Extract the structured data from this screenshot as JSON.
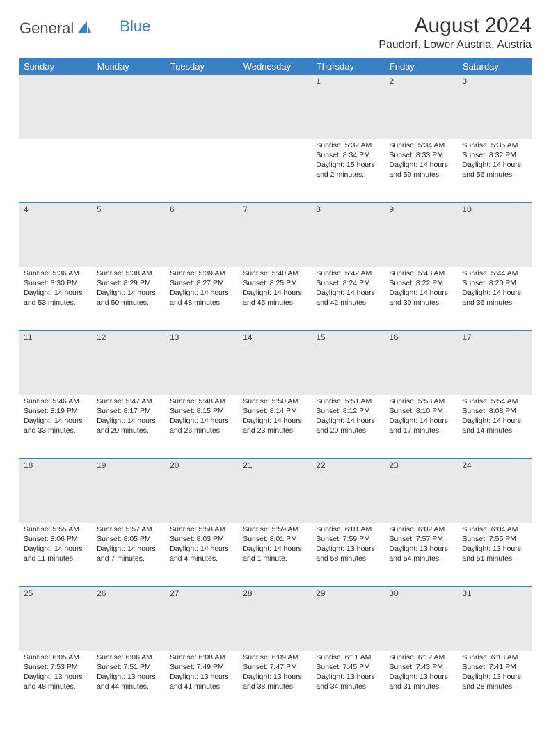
{
  "brand": {
    "part1": "General",
    "part2": "Blue"
  },
  "title": "August 2024",
  "location": "Paudorf, Lower Austria, Austria",
  "colors": {
    "header_bg": "#3b7fc4",
    "header_text": "#ffffff",
    "daynum_bg": "#e9e9e9",
    "border": "#3b7fc4",
    "text": "#222222",
    "logo_gray": "#4a4a4a",
    "logo_blue": "#3b7fc4"
  },
  "weekdays": [
    "Sunday",
    "Monday",
    "Tuesday",
    "Wednesday",
    "Thursday",
    "Friday",
    "Saturday"
  ],
  "weeks": [
    [
      null,
      null,
      null,
      null,
      {
        "n": "1",
        "sr": "5:32 AM",
        "ss": "8:34 PM",
        "dl": "15 hours and 2 minutes."
      },
      {
        "n": "2",
        "sr": "5:34 AM",
        "ss": "8:33 PM",
        "dl": "14 hours and 59 minutes."
      },
      {
        "n": "3",
        "sr": "5:35 AM",
        "ss": "8:32 PM",
        "dl": "14 hours and 56 minutes."
      }
    ],
    [
      {
        "n": "4",
        "sr": "5:36 AM",
        "ss": "8:30 PM",
        "dl": "14 hours and 53 minutes."
      },
      {
        "n": "5",
        "sr": "5:38 AM",
        "ss": "8:29 PM",
        "dl": "14 hours and 50 minutes."
      },
      {
        "n": "6",
        "sr": "5:39 AM",
        "ss": "8:27 PM",
        "dl": "14 hours and 48 minutes."
      },
      {
        "n": "7",
        "sr": "5:40 AM",
        "ss": "8:25 PM",
        "dl": "14 hours and 45 minutes."
      },
      {
        "n": "8",
        "sr": "5:42 AM",
        "ss": "8:24 PM",
        "dl": "14 hours and 42 minutes."
      },
      {
        "n": "9",
        "sr": "5:43 AM",
        "ss": "8:22 PM",
        "dl": "14 hours and 39 minutes."
      },
      {
        "n": "10",
        "sr": "5:44 AM",
        "ss": "8:20 PM",
        "dl": "14 hours and 36 minutes."
      }
    ],
    [
      {
        "n": "11",
        "sr": "5:46 AM",
        "ss": "8:19 PM",
        "dl": "14 hours and 33 minutes."
      },
      {
        "n": "12",
        "sr": "5:47 AM",
        "ss": "8:17 PM",
        "dl": "14 hours and 29 minutes."
      },
      {
        "n": "13",
        "sr": "5:48 AM",
        "ss": "8:15 PM",
        "dl": "14 hours and 26 minutes."
      },
      {
        "n": "14",
        "sr": "5:50 AM",
        "ss": "8:14 PM",
        "dl": "14 hours and 23 minutes."
      },
      {
        "n": "15",
        "sr": "5:51 AM",
        "ss": "8:12 PM",
        "dl": "14 hours and 20 minutes."
      },
      {
        "n": "16",
        "sr": "5:53 AM",
        "ss": "8:10 PM",
        "dl": "14 hours and 17 minutes."
      },
      {
        "n": "17",
        "sr": "5:54 AM",
        "ss": "8:08 PM",
        "dl": "14 hours and 14 minutes."
      }
    ],
    [
      {
        "n": "18",
        "sr": "5:55 AM",
        "ss": "8:06 PM",
        "dl": "14 hours and 11 minutes."
      },
      {
        "n": "19",
        "sr": "5:57 AM",
        "ss": "8:05 PM",
        "dl": "14 hours and 7 minutes."
      },
      {
        "n": "20",
        "sr": "5:58 AM",
        "ss": "8:03 PM",
        "dl": "14 hours and 4 minutes."
      },
      {
        "n": "21",
        "sr": "5:59 AM",
        "ss": "8:01 PM",
        "dl": "14 hours and 1 minute."
      },
      {
        "n": "22",
        "sr": "6:01 AM",
        "ss": "7:59 PM",
        "dl": "13 hours and 58 minutes."
      },
      {
        "n": "23",
        "sr": "6:02 AM",
        "ss": "7:57 PM",
        "dl": "13 hours and 54 minutes."
      },
      {
        "n": "24",
        "sr": "6:04 AM",
        "ss": "7:55 PM",
        "dl": "13 hours and 51 minutes."
      }
    ],
    [
      {
        "n": "25",
        "sr": "6:05 AM",
        "ss": "7:53 PM",
        "dl": "13 hours and 48 minutes."
      },
      {
        "n": "26",
        "sr": "6:06 AM",
        "ss": "7:51 PM",
        "dl": "13 hours and 44 minutes."
      },
      {
        "n": "27",
        "sr": "6:08 AM",
        "ss": "7:49 PM",
        "dl": "13 hours and 41 minutes."
      },
      {
        "n": "28",
        "sr": "6:09 AM",
        "ss": "7:47 PM",
        "dl": "13 hours and 38 minutes."
      },
      {
        "n": "29",
        "sr": "6:11 AM",
        "ss": "7:45 PM",
        "dl": "13 hours and 34 minutes."
      },
      {
        "n": "30",
        "sr": "6:12 AM",
        "ss": "7:43 PM",
        "dl": "13 hours and 31 minutes."
      },
      {
        "n": "31",
        "sr": "6:13 AM",
        "ss": "7:41 PM",
        "dl": "13 hours and 28 minutes."
      }
    ]
  ],
  "labels": {
    "sunrise": "Sunrise:",
    "sunset": "Sunset:",
    "daylight": "Daylight:"
  }
}
